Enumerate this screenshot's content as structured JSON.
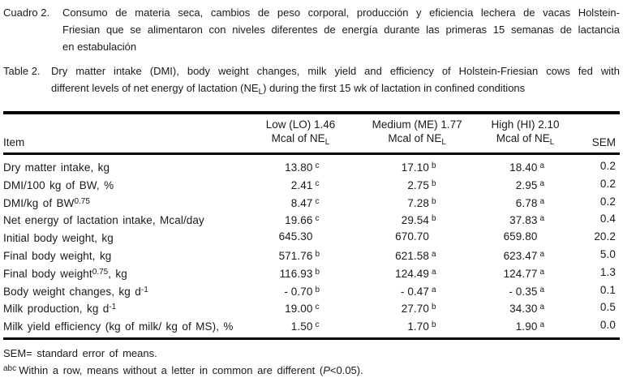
{
  "colors": {
    "background": "#ffffff",
    "text": "#1a1a1a",
    "rule": "#000000"
  },
  "caption_es": {
    "label": "Cuadro 2.",
    "line1": "Consumo de materia seca, cambios de peso corporal, producción y eficiencia lechera de vacas Holstein-",
    "line2": "Friesian que se alimentaron con niveles diferentes de energía durante las primeras 15 semanas de lactancia",
    "line3": "en estabulación"
  },
  "caption_en": {
    "label": "Table 2.",
    "line1": "Dry matter intake (DMI), body weight changes, milk yield and efficiency of Holstein-Friesian cows fed with",
    "line2_pre": "different levels of net energy of lactation (NE",
    "line2_sub": "L",
    "line2_post": ") during the first 15 wk of lactation in confined conditions"
  },
  "table": {
    "item_header": "Item",
    "sem_header": "SEM",
    "columns": [
      {
        "line1": "Low (LO) 1.46",
        "line2_pre": "Mcal of NE",
        "line2_sub": "L"
      },
      {
        "line1": "Medium (ME) 1.77",
        "line2_pre": "Mcal of NE",
        "line2_sub": "L"
      },
      {
        "line1": "High (HI) 2.10",
        "line2_pre": "Mcal of NE",
        "line2_sub": "L"
      }
    ],
    "rows": [
      {
        "item_pre": "Dry matter intake, kg",
        "item_sup": "",
        "item_post": "",
        "low": "13.80",
        "low_sup": "c",
        "med": "17.10",
        "med_sup": "b",
        "high": "18.40",
        "high_sup": "a",
        "sem": "0.2"
      },
      {
        "item_pre": "DMI/100 kg of BW, %",
        "item_sup": "",
        "item_post": "",
        "low": "2.41",
        "low_sup": "c",
        "med": "2.75",
        "med_sup": "b",
        "high": "2.95",
        "high_sup": "a",
        "sem": "0.2"
      },
      {
        "item_pre": "DMI/kg of BW",
        "item_sup": "0.75",
        "item_post": "",
        "low": "8.47",
        "low_sup": "c",
        "med": "7.28",
        "med_sup": "b",
        "high": "6.78",
        "high_sup": "a",
        "sem": "0.2"
      },
      {
        "item_pre": "Net energy of lactation intake, Mcal/day",
        "item_sup": "",
        "item_post": "",
        "low": "19.66",
        "low_sup": "c",
        "med": "29.54",
        "med_sup": "b",
        "high": "37.83",
        "high_sup": "a",
        "sem": "0.4"
      },
      {
        "item_pre": "Initial body weight, kg",
        "item_sup": "",
        "item_post": "",
        "low": "645.30",
        "low_sup": "",
        "med": "670.70",
        "med_sup": "",
        "high": "659.80",
        "high_sup": "",
        "sem": "20.2"
      },
      {
        "item_pre": "Final body weight, kg",
        "item_sup": "",
        "item_post": "",
        "low": "571.76",
        "low_sup": "b",
        "med": "621.58",
        "med_sup": "a",
        "high": "623.47",
        "high_sup": "a",
        "sem": "5.0"
      },
      {
        "item_pre": "Final body weight",
        "item_sup": "0.75",
        "item_post": ", kg",
        "low": "116.93",
        "low_sup": "b",
        "med": "124.49",
        "med_sup": "a",
        "high": "124.77",
        "high_sup": "a",
        "sem": "1.3"
      },
      {
        "item_pre": "Body weight changes, kg d",
        "item_sup": "-1",
        "item_post": "",
        "low": "- 0.70",
        "low_sup": "b",
        "med": "- 0.47",
        "med_sup": "a",
        "high": "- 0.35",
        "high_sup": "a",
        "sem": "0.1"
      },
      {
        "item_pre": "Milk production, kg d",
        "item_sup": "-1",
        "item_post": "",
        "low": "19.00",
        "low_sup": "c",
        "med": "27.70",
        "med_sup": "b",
        "high": "34.30",
        "high_sup": "a",
        "sem": "0.5"
      },
      {
        "item_pre": "Milk yield efficiency (kg of milk/ kg of MS), %",
        "item_sup": "",
        "item_post": "",
        "low": "1.50",
        "low_sup": "c",
        "med": "1.70",
        "med_sup": "b",
        "high": "1.90",
        "high_sup": "a",
        "sem": "0.0"
      }
    ]
  },
  "footnotes": {
    "sem": "SEM= standard error of means.",
    "abc_sup": "abc",
    "abc_pre": "Within a row, means without a letter in common are different (",
    "abc_italic": "P",
    "abc_post": "<0.05)."
  }
}
